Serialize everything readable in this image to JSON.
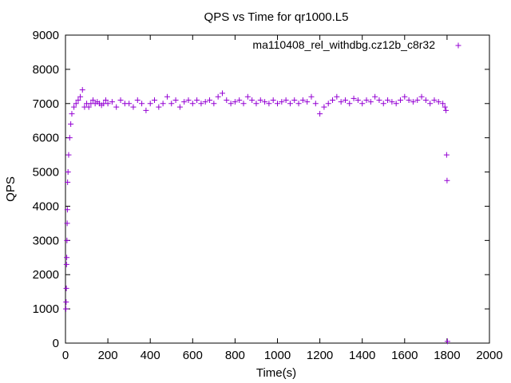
{
  "chart_data": {
    "type": "scatter",
    "title": "QPS vs Time for qr1000.L5",
    "xlabel": "Time(s)",
    "ylabel": "QPS",
    "xlim": [
      0,
      2000
    ],
    "ylim": [
      0,
      9000
    ],
    "xticks": [
      0,
      200,
      400,
      600,
      800,
      1000,
      1200,
      1400,
      1600,
      1800,
      2000
    ],
    "yticks": [
      0,
      1000,
      2000,
      3000,
      4000,
      5000,
      6000,
      7000,
      8000,
      9000
    ],
    "grid": false,
    "legend_position": "top-right",
    "series": [
      {
        "name": "ma110408_rel_withdbg.cz12b_c8r32",
        "color": "#9400d3",
        "marker": "plus",
        "x": [
          2,
          3,
          4,
          5,
          6,
          7,
          8,
          9,
          10,
          12,
          15,
          20,
          25,
          30,
          40,
          50,
          60,
          70,
          80,
          90,
          100,
          110,
          120,
          130,
          140,
          150,
          160,
          170,
          180,
          190,
          200,
          220,
          240,
          260,
          280,
          300,
          320,
          340,
          360,
          380,
          400,
          420,
          440,
          460,
          480,
          500,
          520,
          540,
          560,
          580,
          600,
          620,
          640,
          660,
          680,
          700,
          720,
          740,
          760,
          780,
          800,
          820,
          840,
          860,
          880,
          900,
          920,
          940,
          960,
          980,
          1000,
          1020,
          1040,
          1060,
          1080,
          1100,
          1120,
          1140,
          1160,
          1180,
          1200,
          1220,
          1240,
          1260,
          1280,
          1300,
          1320,
          1340,
          1360,
          1380,
          1400,
          1420,
          1440,
          1460,
          1480,
          1500,
          1520,
          1540,
          1560,
          1580,
          1600,
          1620,
          1640,
          1660,
          1680,
          1700,
          1720,
          1740,
          1760,
          1780,
          1790,
          1795,
          1798,
          1800,
          1802
        ],
        "y": [
          1000,
          1200,
          1600,
          2300,
          2500,
          3000,
          3500,
          3900,
          4700,
          5000,
          5500,
          6000,
          6400,
          6700,
          6900,
          7000,
          7100,
          7200,
          7400,
          6900,
          7000,
          6900,
          7000,
          7100,
          7000,
          7050,
          7000,
          6950,
          7000,
          7100,
          7000,
          7050,
          6900,
          7100,
          7000,
          7000,
          6900,
          7100,
          7000,
          6800,
          7000,
          7100,
          6900,
          7000,
          7200,
          7000,
          7100,
          6900,
          7050,
          7100,
          7000,
          7100,
          7000,
          7050,
          7100,
          7000,
          7200,
          7300,
          7100,
          7000,
          7050,
          7100,
          7000,
          7200,
          7100,
          7000,
          7100,
          7050,
          7000,
          7100,
          7000,
          7050,
          7100,
          7000,
          7100,
          7000,
          7100,
          7050,
          7200,
          7000,
          6700,
          6900,
          7000,
          7100,
          7200,
          7050,
          7100,
          7000,
          7150,
          7100,
          7000,
          7100,
          7050,
          7200,
          7100,
          7000,
          7100,
          7050,
          7000,
          7100,
          7200,
          7100,
          7050,
          7100,
          7200,
          7100,
          7000,
          7100,
          7050,
          7000,
          6900,
          6800,
          5500,
          4750,
          50
        ]
      }
    ]
  }
}
